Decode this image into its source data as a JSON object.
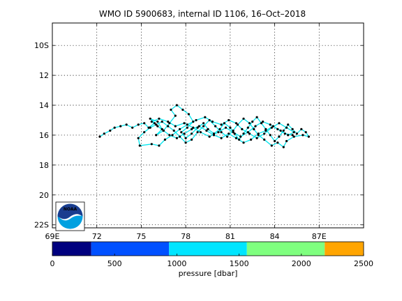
{
  "chart_data": {
    "type": "scatter",
    "title": "WMO ID 5900683, internal ID 1106, 16–Oct–2018",
    "x_axis": {
      "range": [
        69,
        90
      ],
      "ticks": [
        {
          "value": 69,
          "label": "69E"
        },
        {
          "value": 72,
          "label": "72"
        },
        {
          "value": 75,
          "label": "75"
        },
        {
          "value": 78,
          "label": "78"
        },
        {
          "value": 81,
          "label": "81"
        },
        {
          "value": 84,
          "label": "84"
        },
        {
          "value": 87,
          "label": "87E"
        }
      ]
    },
    "y_axis": {
      "range": [
        8.5,
        22.2
      ],
      "direction": "south-downward",
      "ticks": [
        {
          "value": 10,
          "label": "10S"
        },
        {
          "value": 12,
          "label": "12"
        },
        {
          "value": 14,
          "label": "14"
        },
        {
          "value": 16,
          "label": "16"
        },
        {
          "value": 18,
          "label": "18"
        },
        {
          "value": 20,
          "label": "20"
        },
        {
          "value": 22,
          "label": "22S"
        }
      ]
    },
    "grid": true,
    "track_color": "#00e5ee",
    "point_color": "#000000",
    "track": [
      [
        72.2,
        16.1
      ],
      [
        72.5,
        15.9
      ],
      [
        72.9,
        15.7
      ],
      [
        73.2,
        15.5
      ],
      [
        73.6,
        15.4
      ],
      [
        74.0,
        15.3
      ],
      [
        74.4,
        15.5
      ],
      [
        74.8,
        15.3
      ],
      [
        75.2,
        15.2
      ],
      [
        75.5,
        15.5
      ],
      [
        75.9,
        15.2
      ],
      [
        75.6,
        14.9
      ],
      [
        76.1,
        15.1
      ],
      [
        76.4,
        15.6
      ],
      [
        76.0,
        16.0
      ],
      [
        76.5,
        15.7
      ],
      [
        76.9,
        15.2
      ],
      [
        77.3,
        14.7
      ],
      [
        77.0,
        14.3
      ],
      [
        77.4,
        14.0
      ],
      [
        77.8,
        14.3
      ],
      [
        78.2,
        14.6
      ],
      [
        78.5,
        15.1
      ],
      [
        78.1,
        15.5
      ],
      [
        77.7,
        15.8
      ],
      [
        78.0,
        16.2
      ],
      [
        78.4,
        15.9
      ],
      [
        78.8,
        15.5
      ],
      [
        79.2,
        15.2
      ],
      [
        79.5,
        15.6
      ],
      [
        79.9,
        15.9
      ],
      [
        80.3,
        15.6
      ],
      [
        80.6,
        15.2
      ],
      [
        81.0,
        15.5
      ],
      [
        81.3,
        15.9
      ],
      [
        81.6,
        16.3
      ],
      [
        81.9,
        15.9
      ],
      [
        82.2,
        15.5
      ],
      [
        82.5,
        15.1
      ],
      [
        82.8,
        14.8
      ],
      [
        83.1,
        15.2
      ],
      [
        83.4,
        15.6
      ],
      [
        83.7,
        16.0
      ],
      [
        84.0,
        16.4
      ],
      [
        84.3,
        16.1
      ],
      [
        84.6,
        15.7
      ],
      [
        84.9,
        15.3
      ],
      [
        85.2,
        15.6
      ],
      [
        85.5,
        15.9
      ],
      [
        85.8,
        15.6
      ],
      [
        86.1,
        15.8
      ],
      [
        86.3,
        16.1
      ],
      [
        85.9,
        16.0
      ],
      [
        85.3,
        16.1
      ],
      [
        84.8,
        16.4
      ],
      [
        84.6,
        16.8
      ],
      [
        84.2,
        16.5
      ],
      [
        83.8,
        16.7
      ],
      [
        83.3,
        16.3
      ],
      [
        82.9,
        16.0
      ],
      [
        82.6,
        15.6
      ],
      [
        82.3,
        15.2
      ],
      [
        81.9,
        14.9
      ],
      [
        81.5,
        15.3
      ],
      [
        81.2,
        15.7
      ],
      [
        80.8,
        16.1
      ],
      [
        80.4,
        15.8
      ],
      [
        80.0,
        15.4
      ],
      [
        79.6,
        15.0
      ],
      [
        79.2,
        15.4
      ],
      [
        78.8,
        15.8
      ],
      [
        78.4,
        16.3
      ],
      [
        78.0,
        16.5
      ],
      [
        77.6,
        16.1
      ],
      [
        77.2,
        15.7
      ],
      [
        76.8,
        15.4
      ],
      [
        76.4,
        15.1
      ],
      [
        76.0,
        15.3
      ],
      [
        75.6,
        15.5
      ],
      [
        75.2,
        15.8
      ],
      [
        74.8,
        16.2
      ],
      [
        74.9,
        16.7
      ],
      [
        75.7,
        16.6
      ],
      [
        76.2,
        16.7
      ],
      [
        76.6,
        16.3
      ],
      [
        77.1,
        16.0
      ],
      [
        77.6,
        15.6
      ],
      [
        78.1,
        15.3
      ],
      [
        78.7,
        15.0
      ],
      [
        79.3,
        14.8
      ],
      [
        79.8,
        15.1
      ],
      [
        80.4,
        15.3
      ],
      [
        80.9,
        15.0
      ],
      [
        81.4,
        15.2
      ],
      [
        81.8,
        15.6
      ],
      [
        82.3,
        15.9
      ],
      [
        82.8,
        16.2
      ],
      [
        83.3,
        15.9
      ],
      [
        83.8,
        15.5
      ],
      [
        84.3,
        15.2
      ],
      [
        84.8,
        15.5
      ],
      [
        85.3,
        15.8
      ],
      [
        84.9,
        16.0
      ],
      [
        84.4,
        15.7
      ],
      [
        83.9,
        15.4
      ],
      [
        83.4,
        15.7
      ],
      [
        82.9,
        15.9
      ],
      [
        82.4,
        16.3
      ],
      [
        81.9,
        16.5
      ],
      [
        81.4,
        16.2
      ],
      [
        80.9,
        15.9
      ],
      [
        80.4,
        16.2
      ],
      [
        79.9,
        16.0
      ],
      [
        79.4,
        15.7
      ],
      [
        78.9,
        15.4
      ],
      [
        78.4,
        15.6
      ],
      [
        77.9,
        15.9
      ],
      [
        77.4,
        16.2
      ],
      [
        76.9,
        16.0
      ],
      [
        76.5,
        15.7
      ],
      [
        76.1,
        15.4
      ],
      [
        75.7,
        15.1
      ],
      [
        76.2,
        14.9
      ],
      [
        76.8,
        15.1
      ],
      [
        77.3,
        15.4
      ],
      [
        77.9,
        15.2
      ],
      [
        78.5,
        15.5
      ],
      [
        79.0,
        15.8
      ],
      [
        79.6,
        16.1
      ],
      [
        80.2,
        15.8
      ],
      [
        80.7,
        15.5
      ],
      [
        81.2,
        15.8
      ],
      [
        81.7,
        16.1
      ],
      [
        82.2,
        15.8
      ],
      [
        82.7,
        15.4
      ],
      [
        83.2,
        15.1
      ],
      [
        83.7,
        15.3
      ],
      [
        84.2,
        15.6
      ],
      [
        84.7,
        15.9
      ],
      [
        85.2,
        16.0
      ]
    ],
    "colorbar": {
      "label": "pressure [dbar]",
      "range": [
        0,
        2500
      ],
      "ticks": [
        "0",
        "500",
        "1000",
        "1500",
        "2000",
        "2500"
      ],
      "segments": [
        {
          "from": 0,
          "to": 312.5,
          "color": "#00007f"
        },
        {
          "from": 312.5,
          "to": 937.5,
          "color": "#0050ff"
        },
        {
          "from": 937.5,
          "to": 1562.5,
          "color": "#00e5ff"
        },
        {
          "from": 1562.5,
          "to": 2187.5,
          "color": "#7fff7f"
        },
        {
          "from": 2187.5,
          "to": 2500,
          "color": "#ffa500"
        }
      ]
    }
  },
  "logo": {
    "text": "NOAA",
    "colors": {
      "top": "#1a3d8f",
      "bottom": "#00a0e0",
      "bird": "#ffffff"
    }
  }
}
